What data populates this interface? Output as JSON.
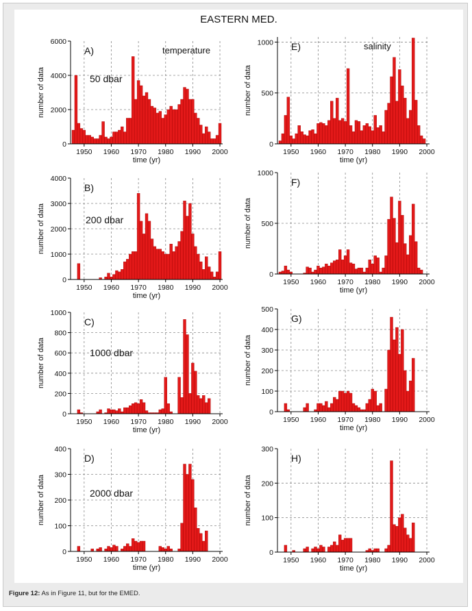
{
  "figure": {
    "title": "EASTERN MED.",
    "caption_label": "Figure 12:",
    "caption_text": " As in Figure 11, but for the EMED."
  },
  "colors": {
    "bar": "#e31919",
    "bar_edge": "#a00000",
    "grid": "#888888",
    "axis": "#000000"
  },
  "chart_data": [
    {
      "id": "A",
      "type": "bar",
      "panel_label": "A)",
      "variable_label": "temperature",
      "depth_label": "50 dbar",
      "xlabel": "time (yr)",
      "ylabel": "number of data",
      "xlim": [
        1945,
        2001
      ],
      "ylim": [
        0,
        6000
      ],
      "xticks": [
        1950,
        1960,
        1970,
        1980,
        1990,
        2000
      ],
      "yticks": [
        0,
        2000,
        4000,
        6000
      ],
      "years": [
        1946,
        1947,
        1948,
        1949,
        1950,
        1951,
        1952,
        1953,
        1954,
        1955,
        1956,
        1957,
        1958,
        1959,
        1960,
        1961,
        1962,
        1963,
        1964,
        1965,
        1966,
        1967,
        1968,
        1969,
        1970,
        1971,
        1972,
        1973,
        1974,
        1975,
        1976,
        1977,
        1978,
        1979,
        1980,
        1981,
        1982,
        1983,
        1984,
        1985,
        1986,
        1987,
        1988,
        1989,
        1990,
        1991,
        1992,
        1993,
        1994,
        1995,
        1996,
        1997,
        1998,
        1999,
        2000
      ],
      "values": [
        800,
        4000,
        1200,
        900,
        800,
        500,
        500,
        400,
        300,
        300,
        500,
        1300,
        400,
        300,
        400,
        700,
        700,
        800,
        1000,
        700,
        1500,
        1500,
        5100,
        2600,
        3700,
        3400,
        2800,
        3000,
        2600,
        2200,
        2100,
        1800,
        1900,
        1500,
        1700,
        2000,
        2200,
        2000,
        2000,
        2300,
        2600,
        3300,
        3200,
        2600,
        2600,
        1800,
        1500,
        1100,
        600,
        1000,
        700,
        300,
        300,
        500,
        1200
      ]
    },
    {
      "id": "B",
      "type": "bar",
      "panel_label": "B)",
      "depth_label": "200 dbar",
      "xlabel": "time (yr)",
      "ylabel": "number of data",
      "xlim": [
        1945,
        2001
      ],
      "ylim": [
        0,
        4000
      ],
      "xticks": [
        1950,
        1960,
        1970,
        1980,
        1990,
        2000
      ],
      "yticks": [
        0,
        1000,
        2000,
        3000,
        4000
      ],
      "years": [
        1948,
        1956,
        1958,
        1959,
        1960,
        1961,
        1962,
        1963,
        1964,
        1965,
        1966,
        1967,
        1968,
        1969,
        1970,
        1971,
        1972,
        1973,
        1974,
        1975,
        1976,
        1977,
        1978,
        1979,
        1980,
        1981,
        1982,
        1983,
        1984,
        1985,
        1986,
        1987,
        1988,
        1989,
        1990,
        1991,
        1992,
        1993,
        1994,
        1995,
        1996,
        1997,
        1998,
        1999,
        2000
      ],
      "values": [
        630,
        70,
        100,
        250,
        100,
        200,
        350,
        300,
        400,
        700,
        800,
        1000,
        1100,
        1100,
        3400,
        2300,
        1800,
        2600,
        2300,
        1600,
        1300,
        1200,
        1200,
        1100,
        1000,
        1000,
        1400,
        1100,
        1300,
        1500,
        1900,
        3100,
        2500,
        3000,
        1800,
        1300,
        1000,
        700,
        400,
        900,
        500,
        300,
        100,
        300,
        1100
      ]
    },
    {
      "id": "C",
      "type": "bar",
      "panel_label": "C)",
      "depth_label": "1000 dbar",
      "xlabel": "time (yr)",
      "ylabel": "number of data",
      "xlim": [
        1945,
        2001
      ],
      "ylim": [
        0,
        1000
      ],
      "xticks": [
        1950,
        1960,
        1970,
        1980,
        1990,
        2000
      ],
      "yticks": [
        0,
        200,
        400,
        600,
        800,
        1000
      ],
      "years": [
        1948,
        1949,
        1955,
        1956,
        1958,
        1959,
        1960,
        1961,
        1962,
        1963,
        1964,
        1965,
        1966,
        1967,
        1968,
        1969,
        1970,
        1971,
        1972,
        1973,
        1974,
        1975,
        1976,
        1977,
        1978,
        1979,
        1980,
        1981,
        1982,
        1985,
        1986,
        1987,
        1988,
        1989,
        1990,
        1991,
        1992,
        1993,
        1994,
        1995,
        1996
      ],
      "values": [
        40,
        10,
        20,
        40,
        10,
        50,
        40,
        40,
        30,
        50,
        20,
        60,
        60,
        80,
        100,
        110,
        100,
        140,
        110,
        30,
        10,
        10,
        10,
        10,
        40,
        50,
        360,
        100,
        20,
        360,
        160,
        930,
        780,
        200,
        500,
        420,
        180,
        150,
        180,
        110,
        150
      ]
    },
    {
      "id": "D",
      "type": "bar",
      "panel_label": "D)",
      "depth_label": "2000 dbar",
      "xlabel": "time (yr)",
      "ylabel": "number of data",
      "xlim": [
        1945,
        2001
      ],
      "ylim": [
        0,
        400
      ],
      "xticks": [
        1950,
        1960,
        1970,
        1980,
        1990,
        2000
      ],
      "yticks": [
        0,
        100,
        200,
        300,
        400
      ],
      "years": [
        1948,
        1953,
        1955,
        1956,
        1958,
        1959,
        1960,
        1961,
        1962,
        1964,
        1965,
        1966,
        1967,
        1968,
        1969,
        1970,
        1971,
        1972,
        1978,
        1979,
        1980,
        1981,
        1982,
        1985,
        1986,
        1987,
        1988,
        1989,
        1990,
        1991,
        1992,
        1993,
        1994,
        1995
      ],
      "values": [
        20,
        10,
        10,
        15,
        10,
        20,
        15,
        25,
        20,
        10,
        20,
        30,
        20,
        50,
        40,
        35,
        40,
        40,
        20,
        15,
        10,
        20,
        10,
        10,
        110,
        340,
        300,
        340,
        280,
        170,
        90,
        70,
        40,
        80
      ]
    },
    {
      "id": "E",
      "type": "bar",
      "panel_label": "E)",
      "variable_label": "salinity",
      "xlabel": "time (yr)",
      "ylabel": "number of data",
      "xlim": [
        1945,
        2001
      ],
      "ylim": [
        0,
        1050
      ],
      "xticks": [
        1950,
        1960,
        1970,
        1980,
        1990,
        2000
      ],
      "yticks": [
        0,
        500,
        1000
      ],
      "years": [
        1946,
        1947,
        1948,
        1949,
        1950,
        1951,
        1952,
        1953,
        1954,
        1955,
        1956,
        1957,
        1958,
        1959,
        1960,
        1961,
        1962,
        1963,
        1964,
        1965,
        1966,
        1967,
        1968,
        1969,
        1970,
        1971,
        1972,
        1973,
        1974,
        1975,
        1976,
        1977,
        1978,
        1979,
        1980,
        1981,
        1982,
        1983,
        1984,
        1985,
        1986,
        1987,
        1988,
        1989,
        1990,
        1991,
        1992,
        1993,
        1994,
        1995,
        1996,
        1997,
        1998,
        1999
      ],
      "values": [
        30,
        100,
        280,
        460,
        80,
        50,
        100,
        180,
        120,
        90,
        80,
        130,
        140,
        100,
        200,
        210,
        200,
        180,
        230,
        420,
        250,
        450,
        230,
        250,
        220,
        740,
        180,
        120,
        230,
        220,
        130,
        180,
        200,
        170,
        130,
        280,
        160,
        180,
        120,
        330,
        400,
        660,
        850,
        420,
        730,
        570,
        450,
        250,
        330,
        1040,
        430,
        180,
        80,
        50
      ]
    },
    {
      "id": "F",
      "type": "bar",
      "panel_label": "F)",
      "xlabel": "time (yr)",
      "ylabel": "number of data",
      "xlim": [
        1945,
        2001
      ],
      "ylim": [
        0,
        1000
      ],
      "xticks": [
        1950,
        1960,
        1970,
        1980,
        1990,
        2000
      ],
      "yticks": [
        0,
        500,
        1000
      ],
      "years": [
        1946,
        1947,
        1948,
        1949,
        1950,
        1955,
        1956,
        1957,
        1958,
        1959,
        1960,
        1961,
        1962,
        1963,
        1964,
        1965,
        1966,
        1967,
        1968,
        1969,
        1970,
        1971,
        1972,
        1973,
        1974,
        1975,
        1976,
        1977,
        1978,
        1979,
        1980,
        1981,
        1982,
        1983,
        1984,
        1985,
        1986,
        1987,
        1988,
        1989,
        1990,
        1991,
        1992,
        1993,
        1994,
        1995,
        1996,
        1997,
        1998
      ],
      "values": [
        20,
        30,
        80,
        40,
        20,
        10,
        70,
        60,
        20,
        40,
        80,
        60,
        70,
        100,
        80,
        110,
        130,
        140,
        240,
        140,
        180,
        240,
        110,
        100,
        50,
        60,
        60,
        20,
        60,
        140,
        100,
        180,
        160,
        20,
        60,
        180,
        540,
        760,
        550,
        310,
        720,
        580,
        300,
        190,
        380,
        690,
        320,
        60,
        40
      ]
    },
    {
      "id": "G",
      "type": "bar",
      "panel_label": "G)",
      "xlabel": "time (yr)",
      "ylabel": "number of data",
      "xlim": [
        1945,
        2001
      ],
      "ylim": [
        0,
        500
      ],
      "xticks": [
        1950,
        1960,
        1970,
        1980,
        1990,
        2000
      ],
      "yticks": [
        0,
        100,
        200,
        300,
        400,
        500
      ],
      "years": [
        1948,
        1949,
        1955,
        1956,
        1959,
        1960,
        1961,
        1962,
        1963,
        1964,
        1965,
        1966,
        1967,
        1968,
        1969,
        1970,
        1971,
        1972,
        1973,
        1974,
        1975,
        1976,
        1977,
        1978,
        1979,
        1980,
        1981,
        1982,
        1983,
        1985,
        1986,
        1987,
        1988,
        1989,
        1990,
        1991,
        1992,
        1993,
        1994,
        1995
      ],
      "values": [
        40,
        10,
        20,
        40,
        10,
        40,
        40,
        30,
        50,
        20,
        40,
        70,
        60,
        100,
        100,
        90,
        100,
        90,
        40,
        30,
        20,
        10,
        10,
        40,
        60,
        110,
        100,
        30,
        40,
        110,
        300,
        460,
        350,
        410,
        280,
        400,
        200,
        100,
        150,
        260
      ]
    },
    {
      "id": "H",
      "type": "bar",
      "panel_label": "H)",
      "xlabel": "time (yr)",
      "ylabel": "number of data",
      "xlim": [
        1945,
        2001
      ],
      "ylim": [
        0,
        300
      ],
      "xticks": [
        1950,
        1960,
        1970,
        1980,
        1990,
        2000
      ],
      "yticks": [
        0,
        100,
        200,
        300
      ],
      "years": [
        1948,
        1951,
        1955,
        1956,
        1958,
        1959,
        1960,
        1961,
        1962,
        1964,
        1965,
        1966,
        1967,
        1968,
        1969,
        1970,
        1971,
        1972,
        1978,
        1979,
        1980,
        1981,
        1982,
        1985,
        1986,
        1987,
        1988,
        1989,
        1990,
        1991,
        1992,
        1993,
        1994,
        1995
      ],
      "values": [
        20,
        5,
        10,
        15,
        10,
        15,
        10,
        20,
        15,
        15,
        20,
        30,
        20,
        50,
        35,
        40,
        40,
        40,
        5,
        10,
        5,
        10,
        10,
        10,
        20,
        265,
        80,
        75,
        100,
        110,
        70,
        50,
        40,
        85
      ]
    }
  ]
}
